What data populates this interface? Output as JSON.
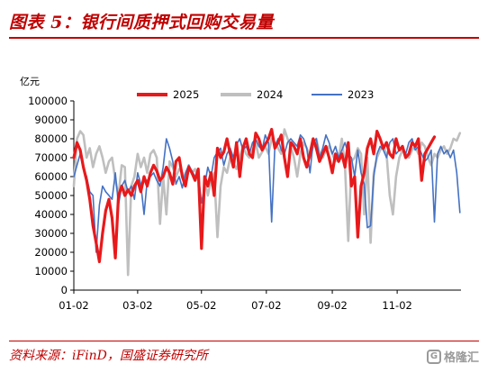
{
  "header": {
    "title": "图表 5：银行间质押式回购交易量",
    "accent_color": "#c00000"
  },
  "footer": {
    "source": "资料来源：iFinD，国盛证券研究所",
    "watermark_text": "格隆汇",
    "watermark_icon": "gelonghui-logo-icon"
  },
  "chart_data": {
    "type": "line",
    "title": "",
    "xlabel": "",
    "ylabel": "亿元",
    "ylim": [
      0,
      100000
    ],
    "yticks": [
      0,
      10000,
      20000,
      30000,
      40000,
      50000,
      60000,
      70000,
      80000,
      90000,
      100000
    ],
    "ytick_labels": [
      "0",
      "10000",
      "20000",
      "30000",
      "40000",
      "50000",
      "60000",
      "70000",
      "80000",
      "90000",
      "100000"
    ],
    "x_axis_unit": "month-day (day of year)",
    "xlim": [
      1,
      365
    ],
    "xticks": [
      1,
      61,
      121,
      182,
      244,
      305
    ],
    "xtick_labels": [
      "01-02",
      "03-02",
      "05-02",
      "07-02",
      "09-02",
      "11-02"
    ],
    "grid": false,
    "legend_position": "top",
    "series": [
      {
        "name": "2025",
        "color": "#e8191b",
        "x": [
          1,
          4,
          7,
          10,
          13,
          16,
          19,
          22,
          25,
          28,
          31,
          34,
          37,
          40,
          43,
          46,
          49,
          52,
          55,
          58,
          61,
          64,
          67,
          70,
          73,
          76,
          79,
          82,
          85,
          88,
          91,
          94,
          97,
          100,
          103,
          106,
          109,
          112,
          115,
          118,
          121,
          124,
          127,
          130,
          133,
          136,
          139,
          142,
          145,
          148,
          151,
          154,
          157,
          160,
          163,
          166,
          169,
          172,
          175,
          178,
          181,
          184,
          187,
          190,
          193,
          196,
          199,
          202,
          205,
          208,
          211,
          214,
          217,
          220,
          223,
          226,
          229,
          232,
          235,
          238,
          241,
          244,
          247,
          250,
          253,
          256,
          259,
          262,
          265,
          268,
          271,
          274,
          277,
          280,
          283,
          286,
          289,
          292,
          295,
          298,
          301,
          304,
          307,
          310,
          313,
          316,
          319,
          322,
          325,
          328,
          331,
          334,
          337,
          340
        ],
        "y": [
          70000,
          78000,
          74000,
          65000,
          58000,
          48000,
          34000,
          25000,
          15000,
          30000,
          42000,
          48000,
          38000,
          17000,
          50000,
          55000,
          50000,
          53000,
          50000,
          55000,
          58000,
          52000,
          60000,
          55000,
          62000,
          66000,
          63000,
          58000,
          60000,
          65000,
          62000,
          56000,
          68000,
          70000,
          60000,
          55000,
          65000,
          62000,
          58000,
          64000,
          22000,
          60000,
          55000,
          62000,
          50000,
          75000,
          70000,
          73000,
          80000,
          72000,
          65000,
          78000,
          60000,
          75000,
          80000,
          72000,
          70000,
          83000,
          80000,
          74000,
          77000,
          80000,
          85000,
          75000,
          78000,
          82000,
          70000,
          60000,
          78000,
          76000,
          72000,
          80000,
          70000,
          65000,
          72000,
          80000,
          75000,
          68000,
          72000,
          76000,
          70000,
          62000,
          72000,
          68000,
          72000,
          65000,
          78000,
          55000,
          60000,
          28000,
          55000,
          62000,
          75000,
          80000,
          72000,
          84000,
          80000,
          75000,
          78000,
          72000,
          70000,
          80000,
          74000,
          76000,
          70000,
          72000,
          78000,
          76000,
          80000,
          58000,
          72000,
          75000,
          78000,
          81000
        ]
      },
      {
        "name": "2024",
        "color": "#bfbfbf",
        "x": [
          1,
          4,
          7,
          10,
          13,
          16,
          19,
          22,
          25,
          28,
          31,
          34,
          37,
          40,
          43,
          46,
          49,
          52,
          55,
          58,
          61,
          64,
          67,
          70,
          73,
          76,
          79,
          82,
          85,
          88,
          91,
          94,
          97,
          100,
          103,
          106,
          109,
          112,
          115,
          118,
          121,
          124,
          127,
          130,
          133,
          136,
          139,
          142,
          145,
          148,
          151,
          154,
          157,
          160,
          163,
          166,
          169,
          172,
          175,
          178,
          181,
          184,
          187,
          190,
          193,
          196,
          199,
          202,
          205,
          208,
          211,
          214,
          217,
          220,
          223,
          226,
          229,
          232,
          235,
          238,
          241,
          244,
          247,
          250,
          253,
          256,
          259,
          262,
          265,
          268,
          271,
          274,
          277,
          280,
          283,
          286,
          289,
          292,
          295,
          298,
          301,
          304,
          307,
          310,
          313,
          316,
          319,
          322,
          325,
          328,
          331,
          334,
          337,
          340,
          343,
          346,
          349,
          352,
          355,
          358,
          361,
          364
        ],
        "y": [
          55000,
          80000,
          84000,
          82000,
          70000,
          75000,
          65000,
          72000,
          76000,
          70000,
          62000,
          68000,
          70000,
          58000,
          50000,
          66000,
          65000,
          8000,
          55000,
          60000,
          72000,
          65000,
          70000,
          62000,
          72000,
          74000,
          70000,
          35000,
          60000,
          40000,
          68000,
          65000,
          60000,
          64000,
          62000,
          58000,
          66000,
          62000,
          64000,
          60000,
          25000,
          58000,
          50000,
          58000,
          62000,
          28000,
          55000,
          65000,
          62000,
          70000,
          67000,
          64000,
          70000,
          76000,
          72000,
          70000,
          74000,
          78000,
          70000,
          73000,
          76000,
          72000,
          80000,
          78000,
          75000,
          72000,
          85000,
          80000,
          76000,
          70000,
          60000,
          72000,
          78000,
          75000,
          70000,
          76000,
          80000,
          72000,
          70000,
          74000,
          76000,
          72000,
          68000,
          70000,
          80000,
          65000,
          26000,
          68000,
          70000,
          75000,
          72000,
          40000,
          70000,
          25000,
          62000,
          70000,
          74000,
          76000,
          72000,
          50000,
          40000,
          60000,
          70000,
          74000,
          72000,
          70000,
          74000,
          76000,
          72000,
          78000,
          76000,
          70000,
          66000,
          72000,
          70000,
          74000,
          76000,
          72000,
          75000,
          80000,
          79000,
          83000
        ]
      },
      {
        "name": "2023",
        "color": "#4472c4",
        "x": [
          1,
          4,
          7,
          10,
          13,
          16,
          19,
          22,
          25,
          28,
          31,
          34,
          37,
          40,
          43,
          46,
          49,
          52,
          55,
          58,
          61,
          64,
          67,
          70,
          73,
          76,
          79,
          82,
          85,
          88,
          91,
          94,
          97,
          100,
          103,
          106,
          109,
          112,
          115,
          118,
          121,
          124,
          127,
          130,
          133,
          136,
          139,
          142,
          145,
          148,
          151,
          154,
          157,
          160,
          163,
          166,
          169,
          172,
          175,
          178,
          181,
          184,
          187,
          190,
          193,
          196,
          199,
          202,
          205,
          208,
          211,
          214,
          217,
          220,
          223,
          226,
          229,
          232,
          235,
          238,
          241,
          244,
          247,
          250,
          253,
          256,
          259,
          262,
          265,
          268,
          271,
          274,
          277,
          280,
          283,
          286,
          289,
          292,
          295,
          298,
          301,
          304,
          307,
          310,
          313,
          316,
          319,
          322,
          325,
          328,
          331,
          334,
          337,
          340,
          343,
          346,
          349,
          352,
          355,
          358,
          361,
          364
        ],
        "y": [
          60000,
          66000,
          72000,
          64000,
          60000,
          52000,
          50000,
          20000,
          45000,
          55000,
          52000,
          50000,
          48000,
          62000,
          45000,
          55000,
          58000,
          52000,
          55000,
          48000,
          62000,
          56000,
          40000,
          58000,
          60000,
          62000,
          58000,
          55000,
          65000,
          80000,
          75000,
          68000,
          56000,
          60000,
          54000,
          62000,
          66000,
          63000,
          60000,
          62000,
          46000,
          55000,
          65000,
          60000,
          70000,
          73000,
          75000,
          66000,
          72000,
          75000,
          70000,
          77000,
          80000,
          74000,
          76000,
          72000,
          78000,
          80000,
          76000,
          74000,
          82000,
          78000,
          36000,
          76000,
          80000,
          74000,
          72000,
          78000,
          80000,
          78000,
          76000,
          82000,
          80000,
          75000,
          62000,
          78000,
          80000,
          70000,
          75000,
          82000,
          78000,
          72000,
          76000,
          70000,
          74000,
          78000,
          72000,
          70000,
          60000,
          74000,
          62000,
          56000,
          33000,
          34000,
          60000,
          72000,
          76000,
          74000,
          70000,
          78000,
          80000,
          72000,
          74000,
          76000,
          72000,
          78000,
          80000,
          74000,
          76000,
          72000,
          68000,
          70000,
          74000,
          36000,
          72000,
          76000,
          72000,
          74000,
          70000,
          74000,
          62000,
          41000
        ]
      }
    ]
  }
}
